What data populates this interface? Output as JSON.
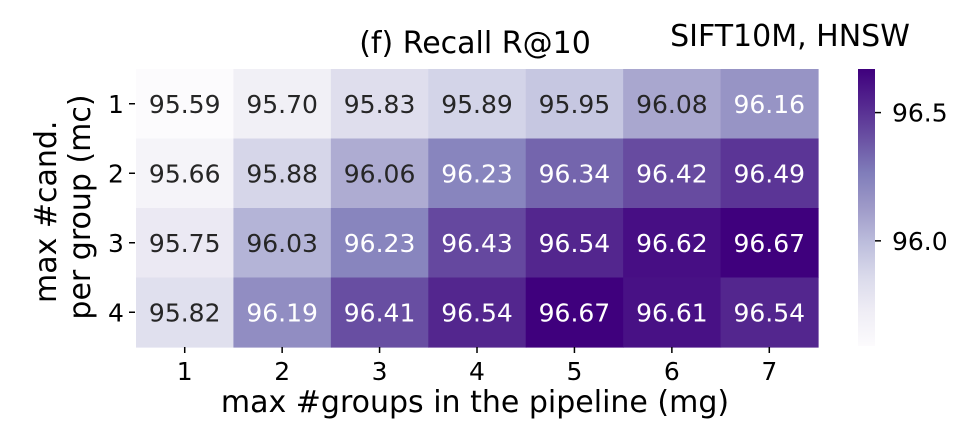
{
  "chart_data": {
    "type": "heatmap",
    "title": "(f) Recall R@10",
    "subtitle": "SIFT10M, HNSW",
    "xlabel": "max #groups in the pipeline (mg)",
    "ylabel_lines": [
      "max #cand.",
      "per group (mc)"
    ],
    "x_categories": [
      "1",
      "2",
      "3",
      "4",
      "5",
      "6",
      "7"
    ],
    "y_categories": [
      "1",
      "2",
      "3",
      "4"
    ],
    "values": [
      [
        95.59,
        95.7,
        95.83,
        95.89,
        95.95,
        96.08,
        96.16
      ],
      [
        95.66,
        95.88,
        96.06,
        96.23,
        96.34,
        96.42,
        96.49
      ],
      [
        95.75,
        96.03,
        96.23,
        96.43,
        96.54,
        96.62,
        96.67
      ],
      [
        95.82,
        96.19,
        96.41,
        96.54,
        96.67,
        96.61,
        96.54
      ]
    ],
    "value_labels": [
      [
        "95.59",
        "95.70",
        "95.83",
        "95.89",
        "95.95",
        "96.08",
        "96.16"
      ],
      [
        "95.66",
        "95.88",
        "96.06",
        "96.23",
        "96.34",
        "96.42",
        "96.49"
      ],
      [
        "95.75",
        "96.03",
        "96.23",
        "96.43",
        "96.54",
        "96.62",
        "96.67"
      ],
      [
        "95.82",
        "96.19",
        "96.41",
        "96.54",
        "96.67",
        "96.61",
        "96.54"
      ]
    ],
    "colorbar": {
      "range": [
        95.59,
        96.67
      ],
      "ticks": [
        96.0,
        96.5
      ],
      "tick_labels": [
        "96.0",
        "96.5"
      ],
      "colormap": "Purples",
      "low_color": "#fcfbfd",
      "high_color": "#3f007d"
    },
    "text_colors": {
      "dark": "#262626",
      "light": "#ffffff"
    }
  }
}
